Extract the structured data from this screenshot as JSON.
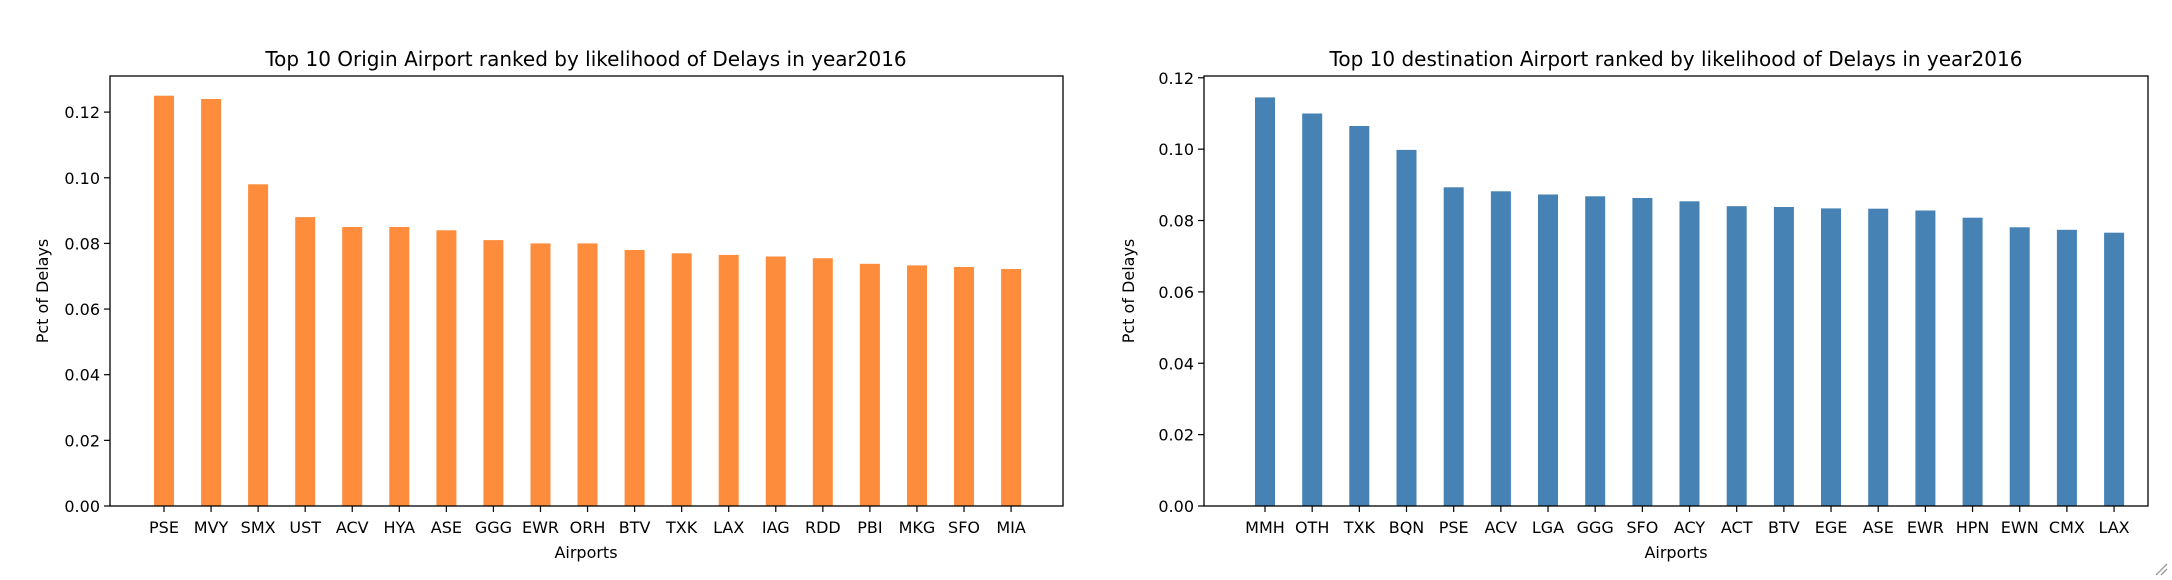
{
  "chart_data": [
    {
      "type": "bar",
      "title": "Top 10 Origin Airport ranked by likelihood of Delays in year2016",
      "xlabel": "Airports",
      "ylabel": "Pct of Delays",
      "categories": [
        "PSE",
        "MVY",
        "SMX",
        "UST",
        "ACV",
        "HYA",
        "ASE",
        "GGG",
        "EWR",
        "ORH",
        "BTV",
        "TXK",
        "LAX",
        "IAG",
        "RDD",
        "PBI",
        "MKG",
        "SFO",
        "MIA"
      ],
      "values": [
        0.125,
        0.124,
        0.098,
        0.088,
        0.085,
        0.085,
        0.084,
        0.081,
        0.08,
        0.08,
        0.078,
        0.077,
        0.0765,
        0.076,
        0.0755,
        0.0738,
        0.0733,
        0.0728,
        0.0722
      ],
      "ylim": [
        0,
        0.131
      ],
      "yticks": [
        "0.00",
        "0.02",
        "0.04",
        "0.06",
        "0.08",
        "0.10",
        "0.12"
      ],
      "color": "#fd8d3c",
      "grid": false
    },
    {
      "type": "bar",
      "title": "Top 10 destination Airport ranked by likelihood of Delays in year2016",
      "xlabel": "Airports",
      "ylabel": "Pct of Delays",
      "categories": [
        "MMH",
        "OTH",
        "TXK",
        "BQN",
        "PSE",
        "ACV",
        "LGA",
        "GGG",
        "SFO",
        "ACY",
        "ACT",
        "BTV",
        "EGE",
        "ASE",
        "EWR",
        "HPN",
        "EWN",
        "CMX",
        "LAX"
      ],
      "values": [
        0.1145,
        0.11,
        0.1065,
        0.0998,
        0.0893,
        0.0882,
        0.0873,
        0.0868,
        0.0863,
        0.0854,
        0.084,
        0.0838,
        0.0834,
        0.0833,
        0.0828,
        0.0808,
        0.0781,
        0.0774,
        0.0766
      ],
      "ylim": [
        0,
        0.1205
      ],
      "yticks": [
        "0.00",
        "0.02",
        "0.04",
        "0.06",
        "0.08",
        "0.10",
        "0.12"
      ],
      "color": "#4682b4",
      "grid": false
    }
  ]
}
